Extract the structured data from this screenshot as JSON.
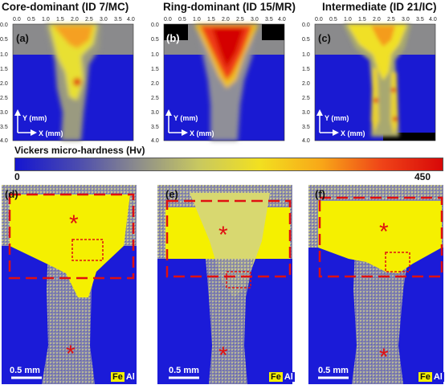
{
  "titles": {
    "a": "Core-dominant (ID 7/MC)",
    "b": "Ring-dominant (ID 15/MR)",
    "c": "Intermediate (ID 21/IC)"
  },
  "panel_letters": {
    "a": "(a)",
    "b": "(b)",
    "c": "(c)",
    "d": "(d)",
    "e": "(e)",
    "f": "(f)"
  },
  "heatmap_axes": {
    "x_ticks": [
      "0.0",
      "0.5",
      "1.0",
      "1.5",
      "2.0",
      "2.5",
      "3.0",
      "3.5",
      "4.0"
    ],
    "y_ticks": [
      "0.0",
      "0.5",
      "1.0",
      "1.5",
      "2.0",
      "2.5",
      "3.0",
      "3.5",
      "4.0"
    ],
    "y_arrow_label": "Y (mm)",
    "x_arrow_label": "X (mm)"
  },
  "colorbar": {
    "title": "Vickers micro-hardness (Hv)",
    "min_label": "0",
    "max_label": "450",
    "colors": [
      "#1515d0",
      "#4a4ab0",
      "#8c8c8c",
      "#c8c860",
      "#f2e020",
      "#f8a818",
      "#ef4418",
      "#d80808"
    ]
  },
  "micro_panels": {
    "scale_label": "0.5 mm",
    "legend_fe": "Fe",
    "legend_al": "Al",
    "asterisk": "*"
  },
  "colors": {
    "fe_yellow": "#f5f000",
    "al_blue": "#1b1bd8",
    "dashed_red": "#e01010",
    "hard_red": "#e01818"
  }
}
